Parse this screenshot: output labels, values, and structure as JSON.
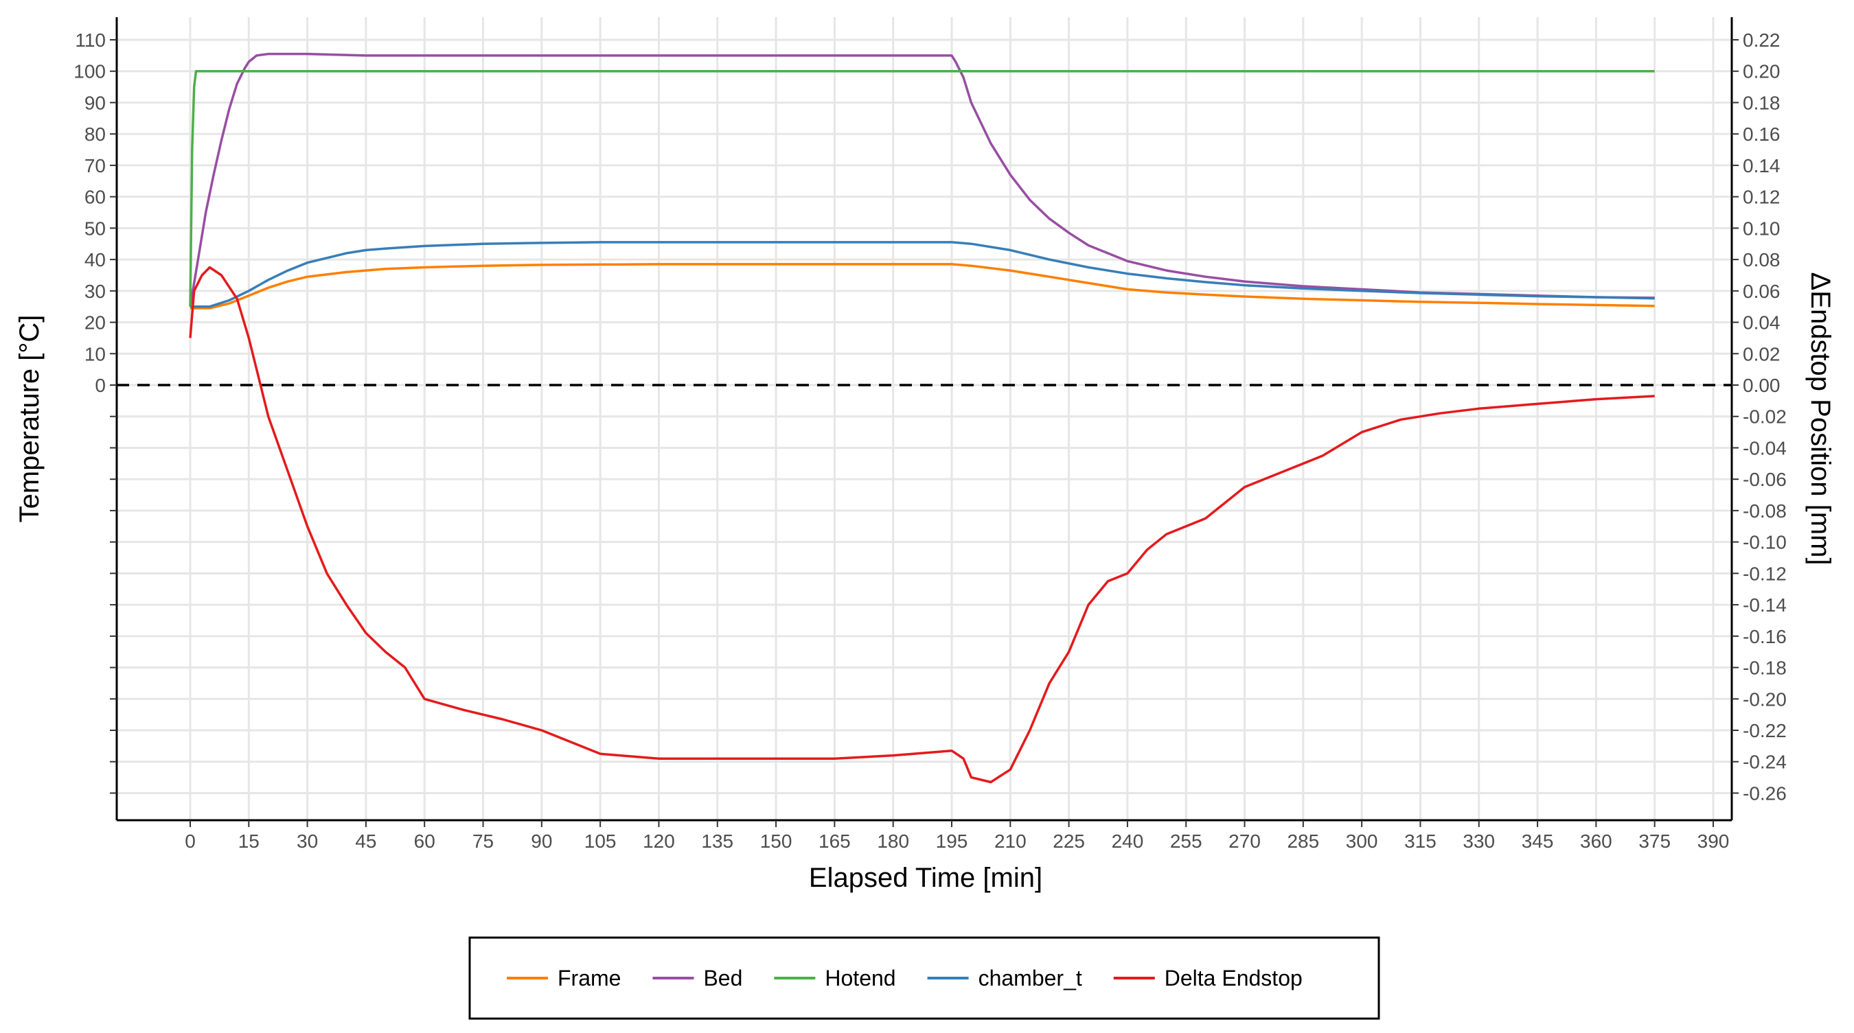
{
  "chart_data": {
    "type": "line",
    "title": "",
    "xlabel": "Elapsed Time [min]",
    "ylabel_left": "Temperature [°C]",
    "ylabel_right": "ΔEndstop Position [mm]",
    "xlim": [
      0,
      390
    ],
    "x_ticks": [
      0,
      15,
      30,
      45,
      60,
      75,
      90,
      105,
      120,
      135,
      150,
      165,
      180,
      195,
      210,
      225,
      240,
      255,
      270,
      285,
      300,
      315,
      330,
      345,
      360,
      375,
      390
    ],
    "y_left_range": [
      0,
      110
    ],
    "y_left_ticks": [
      0,
      10,
      20,
      30,
      40,
      50,
      60,
      70,
      80,
      90,
      100,
      110
    ],
    "y_right_range": [
      -0.26,
      0.22
    ],
    "y_right_ticks": [
      "0.22",
      "0.20",
      "0.18",
      "0.16",
      "0.14",
      "0.12",
      "0.10",
      "0.08",
      "0.06",
      "0.04",
      "0.02",
      "0.00",
      "-0.02",
      "-0.04",
      "-0.06",
      "-0.08",
      "-0.10",
      "-0.12",
      "-0.14",
      "-0.16",
      "-0.18",
      "-0.20",
      "-0.22",
      "-0.24",
      "-0.26"
    ],
    "reference_line": {
      "y_right": 0.0,
      "style": "dashed",
      "color": "#000000"
    },
    "grid": true,
    "legend_position": "bottom",
    "series": [
      {
        "name": "Frame",
        "axis": "left",
        "color": "#FF7F00",
        "points": [
          [
            0,
            24.5
          ],
          [
            5,
            24.5
          ],
          [
            10,
            26
          ],
          [
            15,
            28.5
          ],
          [
            20,
            31
          ],
          [
            25,
            33
          ],
          [
            30,
            34.5
          ],
          [
            40,
            36
          ],
          [
            50,
            37
          ],
          [
            60,
            37.5
          ],
          [
            75,
            38
          ],
          [
            90,
            38.3
          ],
          [
            120,
            38.5
          ],
          [
            150,
            38.5
          ],
          [
            180,
            38.5
          ],
          [
            195,
            38.5
          ],
          [
            200,
            38
          ],
          [
            210,
            36.5
          ],
          [
            220,
            34.5
          ],
          [
            230,
            32.5
          ],
          [
            240,
            30.5
          ],
          [
            250,
            29.5
          ],
          [
            260,
            28.8
          ],
          [
            270,
            28.2
          ],
          [
            285,
            27.5
          ],
          [
            300,
            27
          ],
          [
            315,
            26.5
          ],
          [
            330,
            26.2
          ],
          [
            345,
            25.8
          ],
          [
            360,
            25.5
          ],
          [
            375,
            25.2
          ]
        ]
      },
      {
        "name": "Bed",
        "axis": "left",
        "color": "#984EA3",
        "points": [
          [
            0,
            25
          ],
          [
            2,
            40
          ],
          [
            4,
            55
          ],
          [
            6,
            67
          ],
          [
            8,
            78
          ],
          [
            10,
            88
          ],
          [
            12,
            96
          ],
          [
            14,
            101
          ],
          [
            15,
            103
          ],
          [
            17,
            105
          ],
          [
            20,
            105.5
          ],
          [
            30,
            105.5
          ],
          [
            45,
            105
          ],
          [
            60,
            105
          ],
          [
            90,
            105
          ],
          [
            120,
            105
          ],
          [
            150,
            105
          ],
          [
            180,
            105
          ],
          [
            195,
            105
          ],
          [
            196,
            103
          ],
          [
            198,
            98
          ],
          [
            200,
            90
          ],
          [
            205,
            77
          ],
          [
            210,
            67
          ],
          [
            215,
            59
          ],
          [
            220,
            53
          ],
          [
            225,
            48.5
          ],
          [
            230,
            44.5
          ],
          [
            240,
            39.5
          ],
          [
            250,
            36.5
          ],
          [
            260,
            34.5
          ],
          [
            270,
            33
          ],
          [
            285,
            31.5
          ],
          [
            300,
            30.5
          ],
          [
            315,
            29.5
          ],
          [
            330,
            29
          ],
          [
            345,
            28.5
          ],
          [
            360,
            28
          ],
          [
            375,
            27.8
          ]
        ]
      },
      {
        "name": "Hotend",
        "axis": "left",
        "color": "#4DAF4A",
        "points": [
          [
            0,
            25
          ],
          [
            0.5,
            75
          ],
          [
            1,
            95
          ],
          [
            1.5,
            100
          ],
          [
            375,
            100
          ]
        ]
      },
      {
        "name": "chamber_t",
        "axis": "left",
        "color": "#377EB8",
        "points": [
          [
            0,
            25
          ],
          [
            5,
            25
          ],
          [
            10,
            27
          ],
          [
            15,
            30
          ],
          [
            20,
            33.5
          ],
          [
            25,
            36.5
          ],
          [
            30,
            39
          ],
          [
            35,
            40.5
          ],
          [
            40,
            42
          ],
          [
            45,
            43
          ],
          [
            50,
            43.5
          ],
          [
            60,
            44.3
          ],
          [
            75,
            45
          ],
          [
            90,
            45.3
          ],
          [
            105,
            45.5
          ],
          [
            120,
            45.5
          ],
          [
            150,
            45.5
          ],
          [
            180,
            45.5
          ],
          [
            195,
            45.5
          ],
          [
            200,
            45
          ],
          [
            210,
            43
          ],
          [
            220,
            40
          ],
          [
            230,
            37.5
          ],
          [
            240,
            35.5
          ],
          [
            250,
            34
          ],
          [
            260,
            32.8
          ],
          [
            270,
            31.8
          ],
          [
            285,
            30.8
          ],
          [
            300,
            30
          ],
          [
            315,
            29.3
          ],
          [
            330,
            28.8
          ],
          [
            345,
            28.3
          ],
          [
            360,
            28
          ],
          [
            375,
            27.6
          ]
        ]
      },
      {
        "name": "Delta Endstop",
        "axis": "right",
        "color": "#E41A1C",
        "points": [
          [
            0,
            0.03
          ],
          [
            1,
            0.06
          ],
          [
            3,
            0.07
          ],
          [
            5,
            0.075
          ],
          [
            8,
            0.07
          ],
          [
            12,
            0.055
          ],
          [
            15,
            0.03
          ],
          [
            18,
            0.0
          ],
          [
            20,
            -0.02
          ],
          [
            25,
            -0.055
          ],
          [
            30,
            -0.09
          ],
          [
            35,
            -0.12
          ],
          [
            40,
            -0.14
          ],
          [
            45,
            -0.158
          ],
          [
            50,
            -0.17
          ],
          [
            55,
            -0.18
          ],
          [
            60,
            -0.2
          ],
          [
            70,
            -0.207
          ],
          [
            80,
            -0.213
          ],
          [
            90,
            -0.22
          ],
          [
            105,
            -0.235
          ],
          [
            120,
            -0.238
          ],
          [
            135,
            -0.238
          ],
          [
            150,
            -0.238
          ],
          [
            165,
            -0.238
          ],
          [
            180,
            -0.236
          ],
          [
            195,
            -0.233
          ],
          [
            198,
            -0.238
          ],
          [
            200,
            -0.25
          ],
          [
            205,
            -0.253
          ],
          [
            210,
            -0.245
          ],
          [
            215,
            -0.22
          ],
          [
            220,
            -0.19
          ],
          [
            225,
            -0.17
          ],
          [
            230,
            -0.14
          ],
          [
            235,
            -0.125
          ],
          [
            240,
            -0.12
          ],
          [
            245,
            -0.105
          ],
          [
            250,
            -0.095
          ],
          [
            260,
            -0.085
          ],
          [
            270,
            -0.065
          ],
          [
            280,
            -0.055
          ],
          [
            290,
            -0.045
          ],
          [
            300,
            -0.03
          ],
          [
            310,
            -0.022
          ],
          [
            320,
            -0.018
          ],
          [
            330,
            -0.015
          ],
          [
            345,
            -0.012
          ],
          [
            360,
            -0.009
          ],
          [
            375,
            -0.007
          ]
        ]
      }
    ]
  }
}
